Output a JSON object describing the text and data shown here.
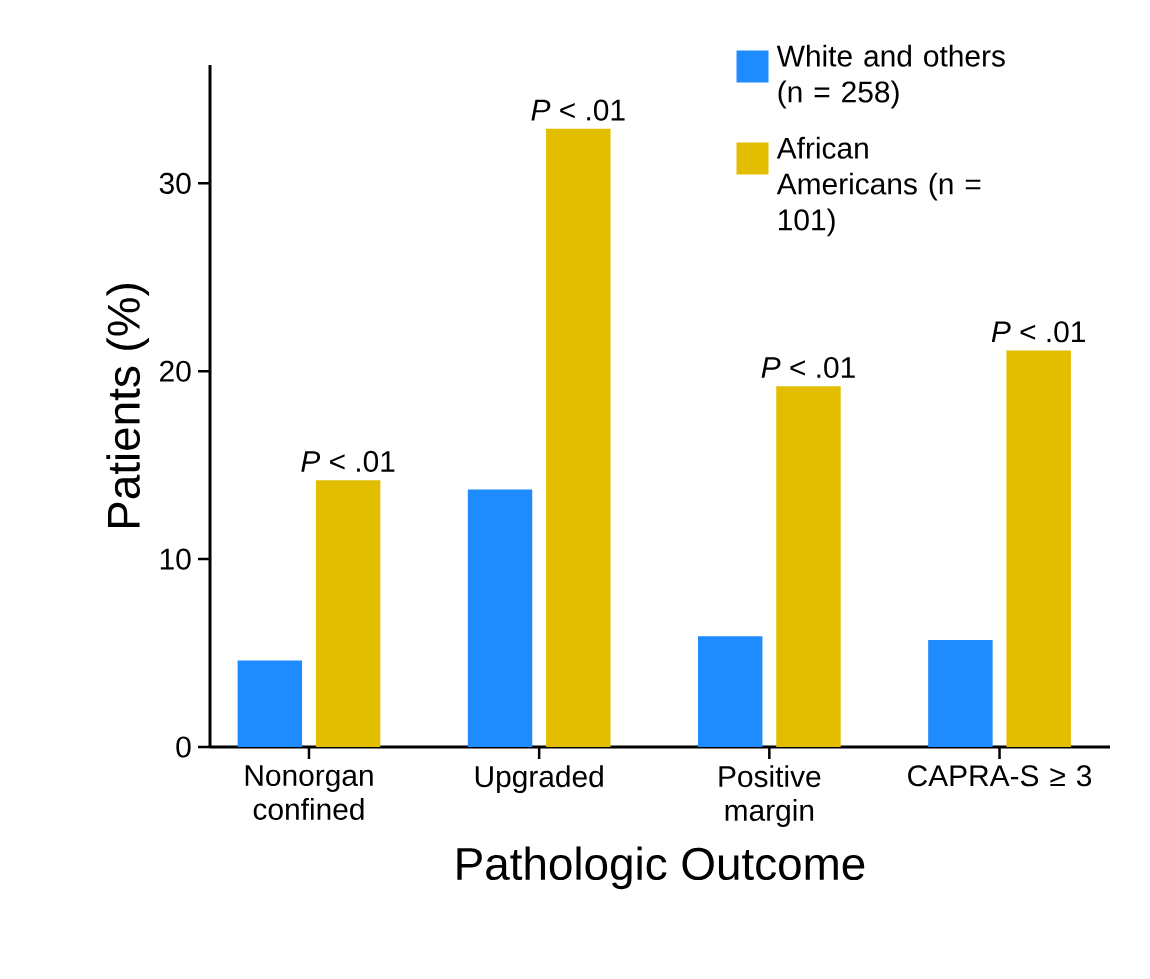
{
  "chart_data": {
    "type": "bar",
    "xlabel": "Pathologic Outcome",
    "ylabel": "Patients (%)",
    "categories": [
      "Nonorgan confined",
      "Upgraded",
      "Positive margin",
      "CAPRA-S ≥ 3"
    ],
    "series": [
      {
        "name": "White and others (n = 258)",
        "color": "#1e8cff",
        "values": [
          4.6,
          13.7,
          5.9,
          5.7
        ]
      },
      {
        "name": "African Americans (n = 101)",
        "color": "#e2bd00",
        "values": [
          14.2,
          32.9,
          19.2,
          21.1
        ]
      }
    ],
    "ylim": [
      0,
      36.3
    ],
    "yticks": [
      0,
      10,
      20,
      30
    ],
    "grid": false,
    "legend": "top right",
    "annotations": [
      "*P* < .01",
      "*P* < .01",
      "*P* < .01",
      "*P* < .01"
    ]
  }
}
